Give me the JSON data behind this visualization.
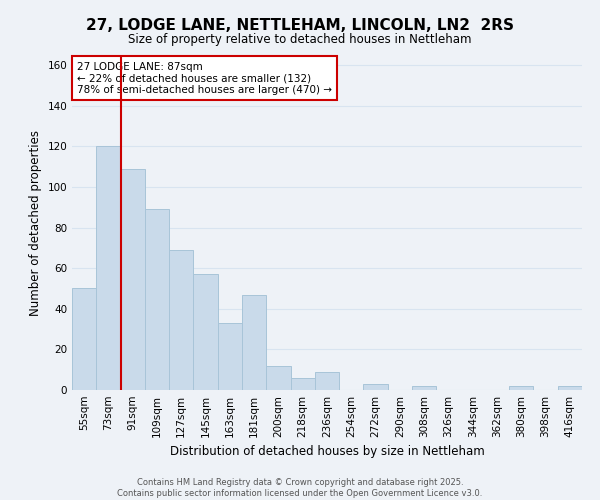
{
  "title": "27, LODGE LANE, NETTLEHAM, LINCOLN, LN2  2RS",
  "subtitle": "Size of property relative to detached houses in Nettleham",
  "xlabel": "Distribution of detached houses by size in Nettleham",
  "ylabel": "Number of detached properties",
  "categories": [
    "55sqm",
    "73sqm",
    "91sqm",
    "109sqm",
    "127sqm",
    "145sqm",
    "163sqm",
    "181sqm",
    "200sqm",
    "218sqm",
    "236sqm",
    "254sqm",
    "272sqm",
    "290sqm",
    "308sqm",
    "326sqm",
    "344sqm",
    "362sqm",
    "380sqm",
    "398sqm",
    "416sqm"
  ],
  "values": [
    50,
    120,
    109,
    89,
    69,
    57,
    33,
    47,
    12,
    6,
    9,
    0,
    3,
    0,
    2,
    0,
    0,
    0,
    2,
    0,
    2
  ],
  "bar_color": "#c9daea",
  "bar_edge_color": "#a8c4d8",
  "vline_after_index": 1,
  "vline_color": "#cc0000",
  "annotation_title": "27 LODGE LANE: 87sqm",
  "annotation_line1": "← 22% of detached houses are smaller (132)",
  "annotation_line2": "78% of semi-detached houses are larger (470) →",
  "annotation_box_facecolor": "#ffffff",
  "annotation_box_edgecolor": "#cc0000",
  "ylim": [
    0,
    165
  ],
  "yticks": [
    0,
    20,
    40,
    60,
    80,
    100,
    120,
    140,
    160
  ],
  "bg_color": "#eef2f7",
  "grid_color": "#d8e4f0",
  "footer1": "Contains HM Land Registry data © Crown copyright and database right 2025.",
  "footer2": "Contains public sector information licensed under the Open Government Licence v3.0."
}
